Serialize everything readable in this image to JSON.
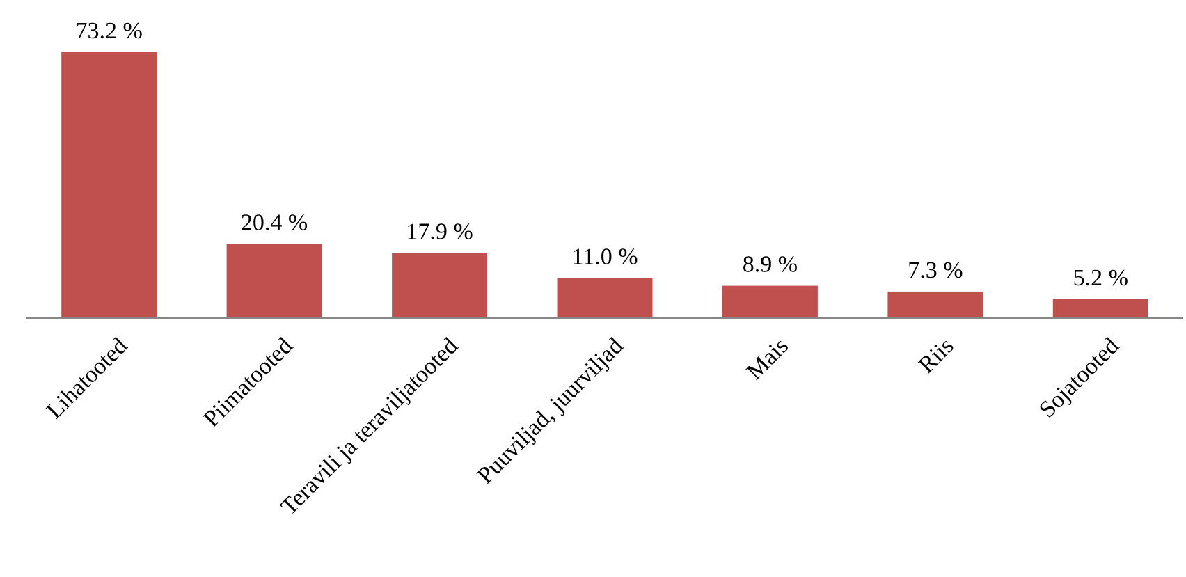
{
  "chart_data": {
    "type": "bar",
    "categories": [
      "Lihatooted",
      "Piimatooted",
      "Teravili ja teraviljatooted",
      "Puuviljad, juurviljad",
      "Mais",
      "Riis",
      "Sojatooted"
    ],
    "values": [
      73.2,
      20.4,
      17.9,
      11.0,
      8.9,
      7.3,
      5.2
    ],
    "value_labels": [
      "73.2 %",
      "20.4 %",
      "17.9 %",
      "11.0 %",
      "8.9 %",
      "7.3 %",
      "5.2 %"
    ],
    "unit": "%",
    "ylim": [
      0,
      73.2
    ],
    "bar_color": "#c0504d",
    "axis_color": "#868686",
    "grid": false,
    "legend": "none",
    "title": "",
    "xlabel": "",
    "ylabel": ""
  }
}
